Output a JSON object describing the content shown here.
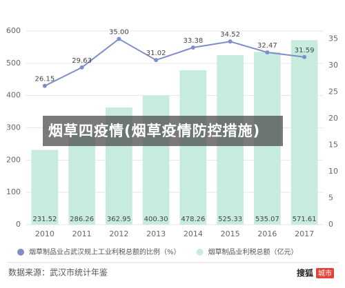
{
  "chart_data": {
    "type": "combo",
    "title": "烟草四疫情(烟草疫情防控措施)",
    "categories": [
      "2010",
      "2011",
      "2012",
      "2013",
      "2014",
      "2015",
      "2016",
      "2017"
    ],
    "series": [
      {
        "name": "烟草制品业利税总额（亿元）",
        "type": "bar",
        "color": "#c8ebdf",
        "values": [
          231.52,
          286.26,
          362.95,
          400.3,
          478.26,
          525.33,
          535.07,
          571.61
        ],
        "value_labels": [
          "231.52",
          "286.26",
          "362.95",
          "400.30",
          "478.26",
          "525.33",
          "535.07",
          "571.61"
        ]
      },
      {
        "name": "烟草制品业占武汉规上工业利税总额的比例（%）",
        "type": "line",
        "axis": "y2",
        "color": "#7d8ec8",
        "values": [
          26.15,
          29.63,
          35.0,
          31.02,
          33.38,
          34.52,
          32.47,
          31.59
        ],
        "value_labels": [
          "26.15",
          "29.63",
          "35.00",
          "31.02",
          "33.38",
          "34.52",
          "32.47",
          "31.59"
        ]
      }
    ],
    "ylim": [
      0,
      600
    ],
    "yticks": [
      0,
      100,
      200,
      300,
      400,
      500,
      600
    ],
    "y2lim": [
      0,
      36.5
    ],
    "y2ticks": [
      0,
      5,
      10,
      15,
      20,
      25,
      30,
      35
    ],
    "grid": true,
    "source": "数据来源：武汉市统计年鉴",
    "watermark": {
      "brand": "搜狐",
      "tag": "城市"
    }
  }
}
